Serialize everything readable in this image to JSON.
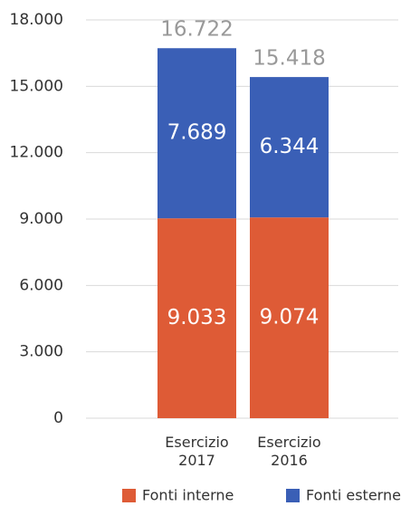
{
  "chart_data": {
    "type": "stacked-bar",
    "categories": [
      "Esercizio 2017",
      "Esercizio 2016"
    ],
    "series": [
      {
        "name": "Fonti interne",
        "color": "#de5b36",
        "values": [
          9033,
          9074
        ],
        "value_labels": [
          "9.033",
          "9.074"
        ]
      },
      {
        "name": "Fonti esterne",
        "color": "#3a5fb6",
        "values": [
          7689,
          6344
        ],
        "value_labels": [
          "7.689",
          "6.344"
        ]
      }
    ],
    "totals": {
      "values": [
        16722,
        15418
      ],
      "value_labels": [
        "16.722",
        "15.418"
      ]
    },
    "ylim": [
      0,
      18000
    ],
    "yticks": [
      0,
      {
        "value": 3000,
        "label": "3.000"
      },
      {
        "value": 6000,
        "label": "6.000"
      },
      {
        "value": 9000,
        "label": "9.000"
      },
      {
        "value": 12000,
        "label": "12.000"
      },
      {
        "value": 15000,
        "label": "15.000"
      },
      {
        "value": 18000,
        "label": "18.000"
      }
    ],
    "grid": true
  }
}
